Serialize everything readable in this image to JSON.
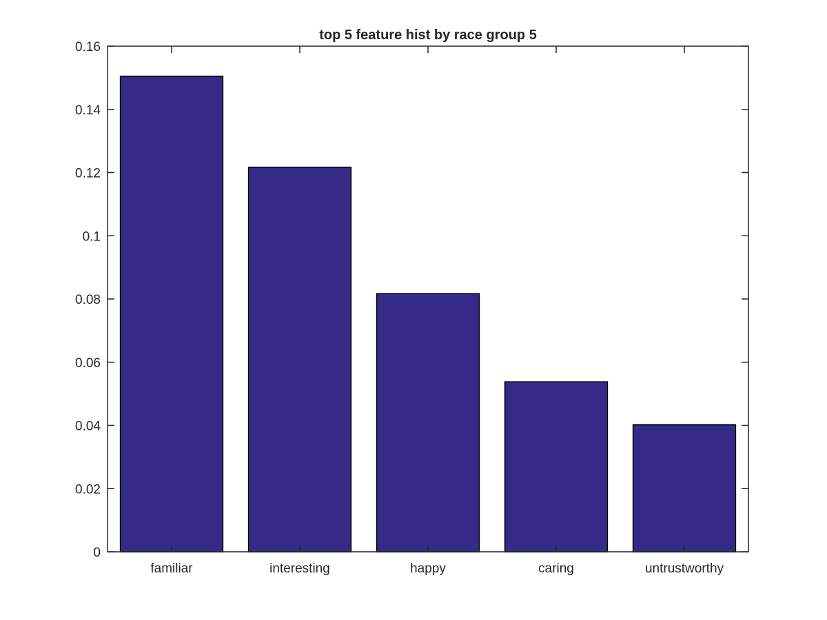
{
  "chart_data": {
    "type": "bar",
    "title": "top 5 feature hist by race group 5",
    "xlabel": "",
    "ylabel": "",
    "categories": [
      "familiar",
      "interesting",
      "happy",
      "caring",
      "untrustworthy"
    ],
    "values": [
      0.1505,
      0.1217,
      0.0817,
      0.0538,
      0.0402
    ],
    "ylim": [
      0,
      0.16
    ],
    "yticks": [
      0,
      0.02,
      0.04,
      0.06,
      0.08,
      0.1,
      0.12,
      0.14,
      0.16
    ],
    "ytick_labels": [
      "0",
      "0.02",
      "0.04",
      "0.06",
      "0.08",
      "0.1",
      "0.12",
      "0.14",
      "0.16"
    ],
    "grid": false,
    "colors": {
      "bar": "#352a87",
      "axis": "#262626",
      "background": "#ffffff"
    }
  }
}
